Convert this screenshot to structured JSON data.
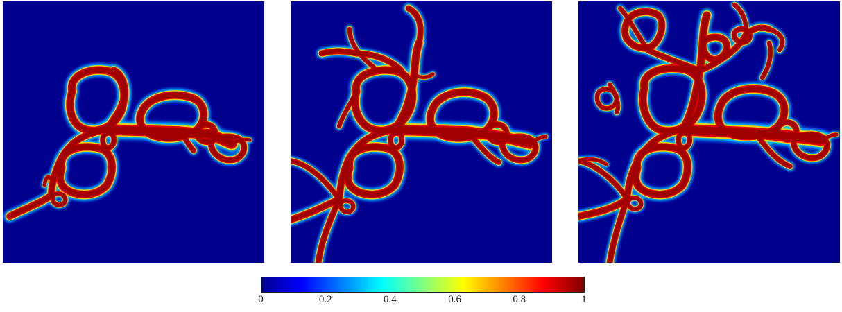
{
  "chart_data": {
    "type": "heatmap",
    "title": "",
    "panels": [
      {
        "name": "",
        "description": "phase-field crack pattern, early stage"
      },
      {
        "name": "",
        "description": "phase-field crack pattern, intermediate stage"
      },
      {
        "name": "",
        "description": "phase-field crack pattern, late stage"
      }
    ],
    "colormap": "jet",
    "colorbar": {
      "range": [
        0,
        1
      ],
      "ticks": [
        0,
        0.2,
        0.4,
        0.6,
        0.8,
        1
      ],
      "tick_labels": [
        "0",
        "0.2",
        "0.4",
        "0.6",
        "0.8",
        "1"
      ],
      "placement": "bottom-center",
      "orientation": "horizontal"
    },
    "background_value": 0,
    "crack_value": 1,
    "grid": false,
    "axes_visible": false
  },
  "colors": {
    "background": "#00008f",
    "crack": "#b40000",
    "jet": [
      "#00008f",
      "#0000ff",
      "#0080ff",
      "#00ffff",
      "#80ff80",
      "#ffff00",
      "#ff8000",
      "#ff0000",
      "#800000"
    ]
  }
}
